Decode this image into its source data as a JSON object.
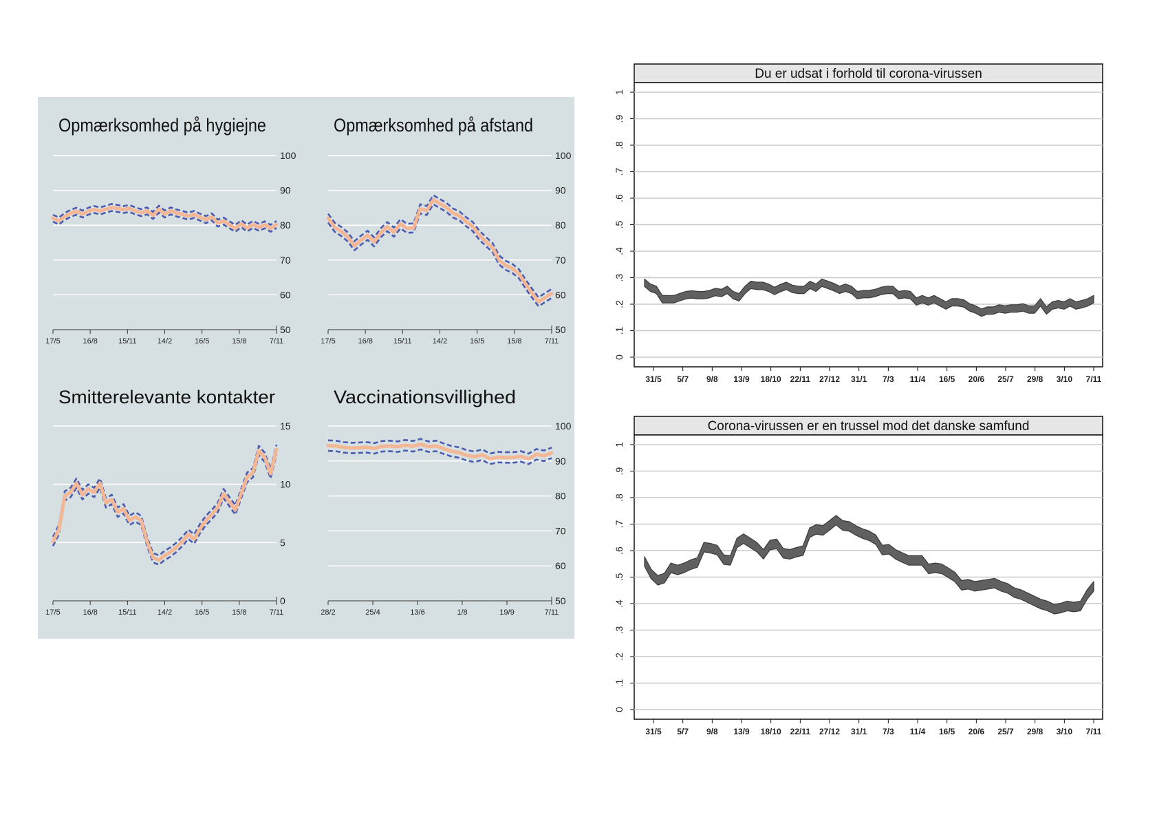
{
  "colors": {
    "left_bg": "#d6e0e2",
    "estimate_line": "#f3b796",
    "ci_dashed": "#4a5bb0",
    "gridline_left": "#ffffff",
    "band_fill": "#606060",
    "band_edge": "#3a3a3a",
    "gridline_right": "#c8c8c8",
    "header_bg": "#e6e6e6"
  },
  "chart_data": [
    {
      "type": "line",
      "title": "Opmærksomhed på hygiejne",
      "ylim": [
        50,
        100
      ],
      "yticks": [
        "100",
        "90",
        "80",
        "70",
        "60",
        "50"
      ],
      "xticks": [
        "17/5",
        "16/8",
        "15/11",
        "14/2",
        "16/5",
        "15/8",
        "7/11"
      ],
      "x_range": [
        "17/5",
        "7/11"
      ],
      "series": [
        {
          "role": "estimate",
          "values": [
            82,
            81.2,
            82.5,
            83.4,
            84,
            83.2,
            84,
            84.5,
            84.1,
            84.6,
            85.1,
            84.8,
            84.5,
            84.8,
            84.1,
            83.6,
            84.1,
            82.8,
            84.6,
            83.2,
            84.1,
            83.5,
            83.1,
            82.6,
            83.1,
            82.3,
            81.6,
            82.4,
            80.6,
            81.2,
            80.1,
            79.1,
            80.4,
            79.2,
            80.2,
            79.4,
            80.1,
            79.1,
            80.2
          ]
        }
      ],
      "ci_halfwidth": 1.0
    },
    {
      "type": "line",
      "title": "Opmærksomhed på afstand",
      "ylim": [
        50,
        100
      ],
      "yticks": [
        "100",
        "90",
        "80",
        "70",
        "60",
        "50"
      ],
      "xticks": [
        "17/5",
        "16/8",
        "15/11",
        "14/2",
        "16/5",
        "15/8",
        "7/11"
      ],
      "x_range": [
        "17/5",
        "7/11"
      ],
      "series": [
        {
          "role": "estimate",
          "values": [
            82,
            79.4,
            78.2,
            76.6,
            74.1,
            75.7,
            77.1,
            75.2,
            77.8,
            79.6,
            78,
            80.4,
            79.1,
            79.2,
            84.7,
            84.2,
            87.3,
            86.2,
            85.1,
            83.5,
            82.6,
            81,
            79.6,
            77.1,
            75.3,
            73.6,
            70,
            68.5,
            67.6,
            66.1,
            63.2,
            60.5,
            58,
            59.2,
            60.4
          ]
        }
      ],
      "ci_halfwidth": 1.3
    },
    {
      "type": "line",
      "title": "Smitterelevante kontakter",
      "ylim": [
        0,
        15
      ],
      "yticks": [
        "15",
        "10",
        "5",
        "0"
      ],
      "xticks": [
        "17/5",
        "16/8",
        "15/11",
        "14/2",
        "16/5",
        "15/8",
        "7/11"
      ],
      "x_range": [
        "17/5",
        "7/11"
      ],
      "series": [
        {
          "role": "estimate",
          "values": [
            5.1,
            6.1,
            9,
            9.3,
            10.1,
            9.1,
            9.6,
            9.3,
            10.1,
            8.4,
            8.7,
            7.6,
            7.9,
            6.9,
            7.2,
            6.9,
            5.1,
            3.7,
            3.5,
            3.9,
            4.2,
            4.6,
            5.1,
            5.7,
            5.3,
            6.2,
            6.9,
            7.4,
            8,
            9.2,
            8.5,
            7.8,
            9.2,
            10.6,
            11,
            12.9,
            12.3,
            10.9,
            13
          ]
        }
      ],
      "ci_halfwidth": 0.4
    },
    {
      "type": "line",
      "title": "Vaccinationsvillighed",
      "ylim": [
        50,
        100
      ],
      "yticks": [
        "100",
        "90",
        "80",
        "70",
        "60",
        "50"
      ],
      "xticks": [
        "28/2",
        "25/4",
        "13/6",
        "1/8",
        "19/9",
        "7/11"
      ],
      "x_range": [
        "28/2",
        "7/11"
      ],
      "series": [
        {
          "role": "estimate",
          "values": [
            94.4,
            94.3,
            93.9,
            93.7,
            93.8,
            93.9,
            93.6,
            94.2,
            94.3,
            94.1,
            94.5,
            94.2,
            94.8,
            94.1,
            94.3,
            93.5,
            92.8,
            92.4,
            91.6,
            91.2,
            91.8,
            90.6,
            91.1,
            91,
            91,
            91.3,
            90.6,
            91.9,
            91.5,
            92.3
          ]
        }
      ],
      "ci_halfwidth": 1.5
    },
    {
      "type": "area",
      "title": "Du er udsat i forhold til corona-virussen",
      "ylim": [
        0,
        1
      ],
      "yticks": [
        "0",
        ".1",
        ".2",
        ".3",
        ".4",
        ".5",
        ".6",
        ".7",
        ".8",
        ".9",
        "1"
      ],
      "xticks": [
        "31/5",
        "5/7",
        "9/8",
        "13/9",
        "18/10",
        "22/11",
        "27/12",
        "31/1",
        "7/3",
        "11/4",
        "16/5",
        "20/6",
        "25/7",
        "29/8",
        "3/10",
        "7/11"
      ],
      "series": [
        {
          "role": "estimate_band_center",
          "values": [
            0.281,
            0.262,
            0.254,
            0.219,
            0.219,
            0.219,
            0.227,
            0.234,
            0.237,
            0.234,
            0.234,
            0.238,
            0.246,
            0.242,
            0.254,
            0.234,
            0.226,
            0.254,
            0.273,
            0.269,
            0.269,
            0.262,
            0.25,
            0.261,
            0.269,
            0.258,
            0.254,
            0.254,
            0.273,
            0.262,
            0.281,
            0.273,
            0.265,
            0.254,
            0.262,
            0.254,
            0.234,
            0.238,
            0.238,
            0.242,
            0.25,
            0.254,
            0.254,
            0.234,
            0.238,
            0.234,
            0.21,
            0.219,
            0.21,
            0.219,
            0.207,
            0.195,
            0.207,
            0.207,
            0.203,
            0.188,
            0.18,
            0.168,
            0.176,
            0.176,
            0.184,
            0.18,
            0.184,
            0.184,
            0.188,
            0.18,
            0.18,
            0.207,
            0.176,
            0.195,
            0.2,
            0.195,
            0.207,
            0.195,
            0.2,
            0.207,
            0.219
          ]
        }
      ],
      "band_halfwidth": 0.014
    },
    {
      "type": "area",
      "title": "Corona-virussen er en trussel mod det danske samfund",
      "ylim": [
        0,
        1
      ],
      "yticks": [
        "0",
        ".1",
        ".2",
        ".3",
        ".4",
        ".5",
        ".6",
        ".7",
        ".8",
        ".9",
        "1"
      ],
      "xticks": [
        "31/5",
        "5/7",
        "9/8",
        "13/9",
        "18/10",
        "22/11",
        "27/12",
        "31/1",
        "7/3",
        "11/4",
        "16/5",
        "20/6",
        "25/7",
        "29/8",
        "3/10",
        "7/11"
      ],
      "series": [
        {
          "role": "estimate_band_center",
          "values": [
            0.559,
            0.512,
            0.488,
            0.496,
            0.535,
            0.527,
            0.535,
            0.547,
            0.555,
            0.613,
            0.609,
            0.602,
            0.566,
            0.563,
            0.629,
            0.645,
            0.629,
            0.613,
            0.586,
            0.621,
            0.625,
            0.59,
            0.586,
            0.594,
            0.6,
            0.668,
            0.68,
            0.676,
            0.695,
            0.715,
            0.695,
            0.691,
            0.676,
            0.664,
            0.656,
            0.641,
            0.602,
            0.605,
            0.586,
            0.574,
            0.563,
            0.563,
            0.563,
            0.531,
            0.535,
            0.531,
            0.516,
            0.5,
            0.469,
            0.473,
            0.465,
            0.469,
            0.473,
            0.477,
            0.465,
            0.457,
            0.441,
            0.434,
            0.422,
            0.41,
            0.398,
            0.391,
            0.379,
            0.383,
            0.391,
            0.387,
            0.391,
            0.434,
            0.465
          ]
        }
      ],
      "band_halfwidth": 0.018
    }
  ]
}
